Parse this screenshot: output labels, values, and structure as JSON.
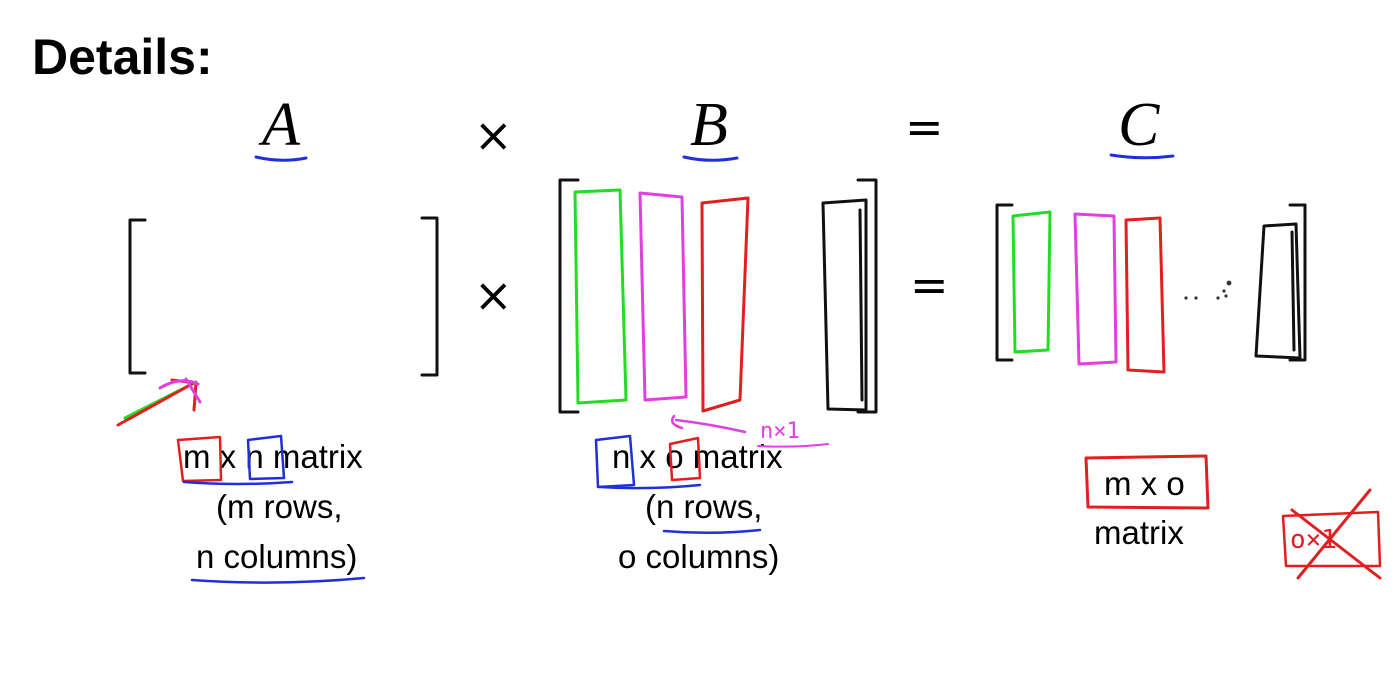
{
  "slide": {
    "title": "Details:",
    "equation": {
      "a": "A",
      "times": "×",
      "b": "B",
      "equals": "=",
      "c": "C"
    },
    "row_times": "×",
    "row_equals": "=",
    "matrix_a": {
      "dim_m": "m",
      "x": "x",
      "dim_n": "n",
      "word": "matrix",
      "rows": "(m rows,",
      "columns_n": "n columns",
      "close_paren": ")"
    },
    "matrix_b": {
      "dim_n": "n",
      "x": "x",
      "dim_o": "o",
      "word": "matrix",
      "open_paren": "(",
      "rows_n": "n rows",
      "comma": ",",
      "columns": "o columns)"
    },
    "matrix_c": {
      "dims": "m x o",
      "word": "matrix"
    },
    "annotations": {
      "handwritten_nx1": "n×1",
      "crossed_out": "o×1"
    },
    "colors": {
      "red": "#e02020",
      "blue": "#2030d8",
      "green": "#22dd22",
      "magenta": "#e040e0",
      "black": "#111111"
    }
  }
}
